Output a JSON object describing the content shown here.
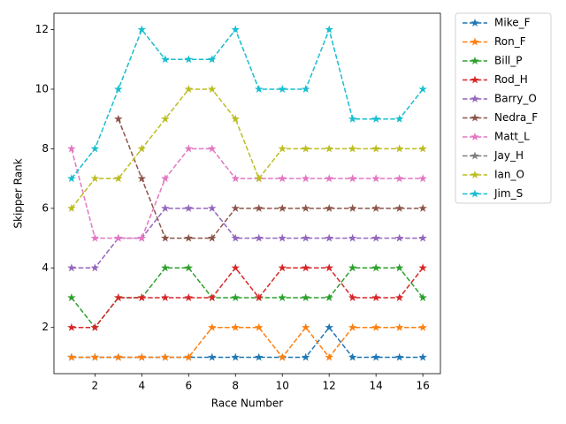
{
  "chart_data": {
    "type": "line",
    "xlabel": "Race Number",
    "ylabel": "Skipper Rank",
    "x": [
      1,
      2,
      3,
      4,
      5,
      6,
      7,
      8,
      9,
      10,
      11,
      12,
      13,
      14,
      15,
      16
    ],
    "xlim": [
      0.25,
      16.75
    ],
    "xticks": [
      2,
      4,
      6,
      8,
      10,
      12,
      14,
      16
    ],
    "ylim": [
      0.45,
      12.55
    ],
    "yticks": [
      2,
      4,
      6,
      8,
      10,
      12
    ],
    "legend": "outside-right",
    "series": [
      {
        "name": "Mike_F",
        "color": "#1f77b4",
        "values": [
          1,
          1,
          1,
          1,
          1,
          1,
          1,
          1,
          1,
          1,
          1,
          2,
          1,
          1,
          1,
          1
        ]
      },
      {
        "name": "Ron_F",
        "color": "#ff7f0e",
        "values": [
          1,
          1,
          1,
          1,
          1,
          1,
          2,
          2,
          2,
          1,
          2,
          1,
          2,
          2,
          2,
          2
        ]
      },
      {
        "name": "Bill_P",
        "color": "#2ca02c",
        "values": [
          3,
          2,
          3,
          3,
          4,
          4,
          3,
          3,
          3,
          3,
          3,
          3,
          4,
          4,
          4,
          3
        ]
      },
      {
        "name": "Rod_H",
        "color": "#d62728",
        "values": [
          2,
          2,
          3,
          3,
          3,
          3,
          3,
          4,
          3,
          4,
          4,
          4,
          3,
          3,
          3,
          4
        ]
      },
      {
        "name": "Barry_O",
        "color": "#9467bd",
        "values": [
          4,
          4,
          5,
          5,
          6,
          6,
          6,
          5,
          5,
          5,
          5,
          5,
          5,
          5,
          5,
          5
        ]
      },
      {
        "name": "Nedra_F",
        "color": "#8c564b",
        "values": [
          null,
          null,
          9,
          7,
          5,
          5,
          5,
          6,
          6,
          6,
          6,
          6,
          6,
          6,
          6,
          6
        ]
      },
      {
        "name": "Matt_L",
        "color": "#e377c2",
        "values": [
          8,
          5,
          5,
          5,
          7,
          8,
          8,
          7,
          7,
          7,
          7,
          7,
          7,
          7,
          7,
          7
        ]
      },
      {
        "name": "Jay_H",
        "color": "#7f7f7f",
        "values": [
          null,
          null,
          null,
          null,
          null,
          null,
          null,
          null,
          null,
          null,
          null,
          null,
          null,
          null,
          null,
          null
        ]
      },
      {
        "name": "Ian_O",
        "color": "#bcbd22",
        "values": [
          6,
          7,
          7,
          8,
          9,
          10,
          10,
          9,
          7,
          8,
          8,
          8,
          8,
          8,
          8,
          8
        ]
      },
      {
        "name": "Jim_S",
        "color": "#17becf",
        "values": [
          7,
          8,
          10,
          12,
          11,
          11,
          11,
          12,
          10,
          10,
          10,
          12,
          9,
          9,
          9,
          10
        ]
      }
    ]
  }
}
